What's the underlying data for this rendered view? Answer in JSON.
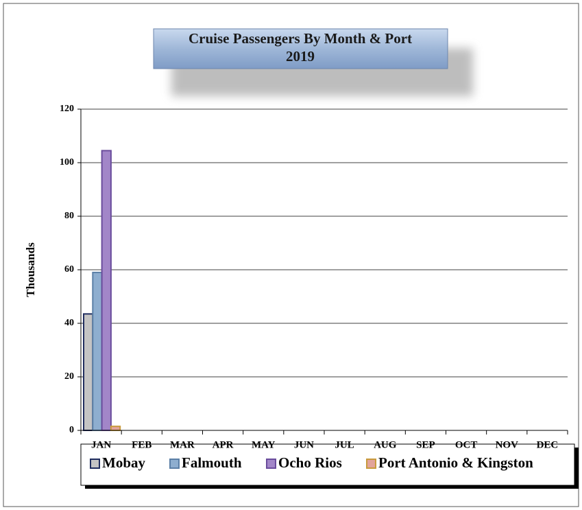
{
  "chart_data": {
    "type": "bar",
    "title": "Cruise Passengers By Month & Port",
    "subtitle": "2019",
    "y_label": "Thousands",
    "categories": [
      "JAN",
      "FEB",
      "MAR",
      "APR",
      "MAY",
      "JUN",
      "JUL",
      "AUG",
      "SEP",
      "OCT",
      "NOV",
      "DEC"
    ],
    "series": [
      {
        "name": "Mobay",
        "color": "#c4c4c4",
        "edge": "#1f2d5e",
        "values": [
          43.5,
          null,
          null,
          null,
          null,
          null,
          null,
          null,
          null,
          null,
          null,
          null
        ]
      },
      {
        "name": "Falmouth",
        "color": "#8eaecf",
        "edge": "#5b7fa6",
        "values": [
          59,
          null,
          null,
          null,
          null,
          null,
          null,
          null,
          null,
          null,
          null,
          null
        ]
      },
      {
        "name": "Ocho Rios",
        "color": "#a286c8",
        "edge": "#6a4c9c",
        "values": [
          104.5,
          null,
          null,
          null,
          null,
          null,
          null,
          null,
          null,
          null,
          null,
          null
        ]
      },
      {
        "name": "Port Antonio & Kingston",
        "color": "#e2a49a",
        "edge": "#c89a3c",
        "values": [
          1.5,
          null,
          null,
          null,
          null,
          null,
          null,
          null,
          null,
          null,
          null,
          null
        ]
      }
    ],
    "ylim": [
      0,
      120
    ],
    "yticks": [
      0,
      20,
      40,
      60,
      80,
      100,
      120
    ],
    "grid": true,
    "legend": "bottom"
  }
}
